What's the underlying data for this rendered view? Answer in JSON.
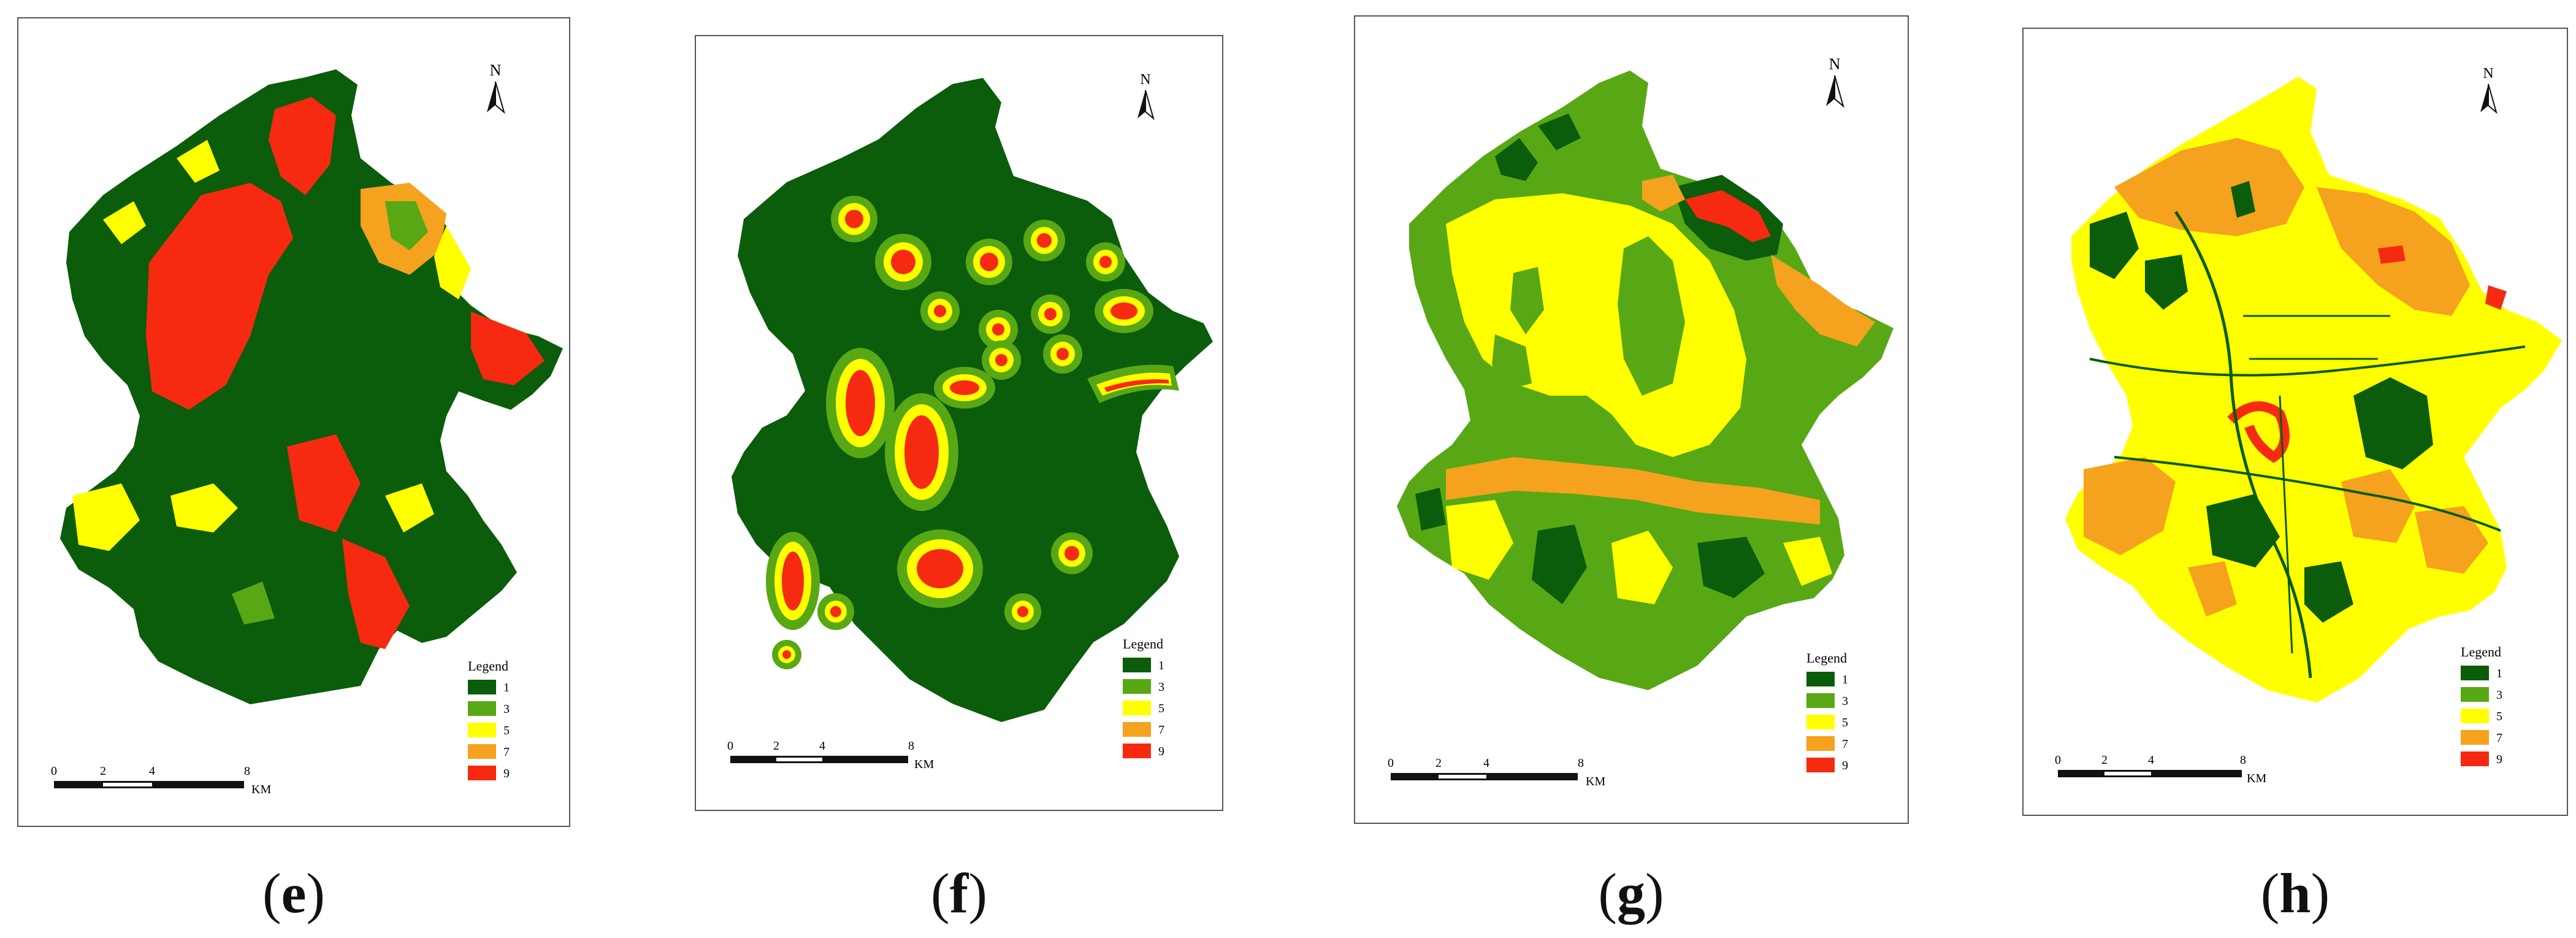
{
  "colors": {
    "class_1": "#0b5c0b",
    "class_3": "#57a814",
    "class_5": "#ffff00",
    "class_7": "#f5a21e",
    "class_9": "#f52a10",
    "frame": "#555555"
  },
  "north_arrow": {
    "label": "N",
    "icon": "north-arrow-icon"
  },
  "legend": {
    "title": "Legend",
    "items": [
      {
        "label": "1",
        "color": "#0b5c0b"
      },
      {
        "label": "3",
        "color": "#57a814"
      },
      {
        "label": "5",
        "color": "#ffff00"
      },
      {
        "label": "7",
        "color": "#f5a21e"
      },
      {
        "label": "9",
        "color": "#f52a10"
      }
    ]
  },
  "scale_bar": {
    "ticks": [
      "0",
      "2",
      "4",
      "8"
    ],
    "unit": "KM"
  },
  "panels": [
    {
      "caption_open": "(",
      "caption_letter": "e",
      "caption_close": ")",
      "map_theme": "mixed-red-green"
    },
    {
      "caption_open": "(",
      "caption_letter": "f",
      "caption_close": ")",
      "map_theme": "buffer-hotspots"
    },
    {
      "caption_open": "(",
      "caption_letter": "g",
      "caption_close": ")",
      "map_theme": "yellow-green"
    },
    {
      "caption_open": "(",
      "caption_letter": "h",
      "caption_close": ")",
      "map_theme": "orange-yellow"
    }
  ]
}
